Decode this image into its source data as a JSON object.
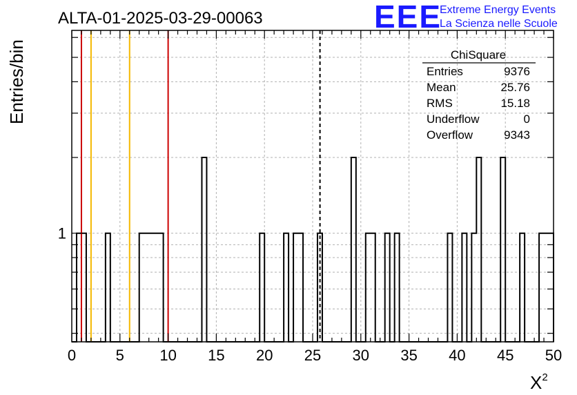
{
  "chart_data": {
    "type": "histogram",
    "title": "ALTA-01-2025-03-29-00063",
    "xlabel": "X",
    "xlabel_superscript": "2",
    "ylabel": "Entries/bin",
    "xlim": [
      0,
      50
    ],
    "y_scale": "log",
    "ylim": [
      0.37,
      6.4
    ],
    "y_tick_labels": [
      {
        "value": 1,
        "label": "1"
      }
    ],
    "x_ticks": [
      0,
      5,
      10,
      15,
      20,
      25,
      30,
      35,
      40,
      45,
      50
    ],
    "grid": true,
    "bin_width": 0.5,
    "bins": [
      {
        "x": 0.5,
        "y": 1
      },
      {
        "x": 1.0,
        "y": 1
      },
      {
        "x": 3.5,
        "y": 1
      },
      {
        "x": 7.0,
        "y": 1
      },
      {
        "x": 7.5,
        "y": 1
      },
      {
        "x": 8.0,
        "y": 1
      },
      {
        "x": 8.5,
        "y": 1
      },
      {
        "x": 9.0,
        "y": 1
      },
      {
        "x": 13.5,
        "y": 2
      },
      {
        "x": 19.5,
        "y": 1
      },
      {
        "x": 22.0,
        "y": 1
      },
      {
        "x": 23.0,
        "y": 1
      },
      {
        "x": 23.5,
        "y": 1
      },
      {
        "x": 25.5,
        "y": 1
      },
      {
        "x": 29.0,
        "y": 2
      },
      {
        "x": 30.5,
        "y": 1
      },
      {
        "x": 31.0,
        "y": 1
      },
      {
        "x": 32.5,
        "y": 1
      },
      {
        "x": 33.5,
        "y": 1
      },
      {
        "x": 39.0,
        "y": 1
      },
      {
        "x": 40.5,
        "y": 1
      },
      {
        "x": 41.5,
        "y": 1
      },
      {
        "x": 42.0,
        "y": 2
      },
      {
        "x": 44.5,
        "y": 2
      },
      {
        "x": 46.5,
        "y": 1
      },
      {
        "x": 48.5,
        "y": 1
      },
      {
        "x": 49.0,
        "y": 1
      },
      {
        "x": 49.5,
        "y": 1
      }
    ],
    "vertical_lines": [
      {
        "x": 1,
        "color": "#cc0000",
        "style": "solid"
      },
      {
        "x": 2,
        "color": "#f5b800",
        "style": "solid"
      },
      {
        "x": 6,
        "color": "#f5b800",
        "style": "solid"
      },
      {
        "x": 10,
        "color": "#cc0000",
        "style": "solid"
      },
      {
        "x": 25.76,
        "color": "#000000",
        "style": "dashed"
      }
    ],
    "stats_box": {
      "title": "ChiSquare",
      "rows": [
        {
          "label": "Entries",
          "value": "9376"
        },
        {
          "label": "Mean",
          "value": "25.76"
        },
        {
          "label": "RMS",
          "value": "15.18"
        },
        {
          "label": "Underflow",
          "value": "0"
        },
        {
          "label": "Overflow",
          "value": "9343"
        }
      ]
    }
  },
  "logo": {
    "mark": "EEE",
    "line1": "Extreme Energy Events",
    "line2": "La Scienza nelle Scuole",
    "color": "#1a1aff"
  }
}
